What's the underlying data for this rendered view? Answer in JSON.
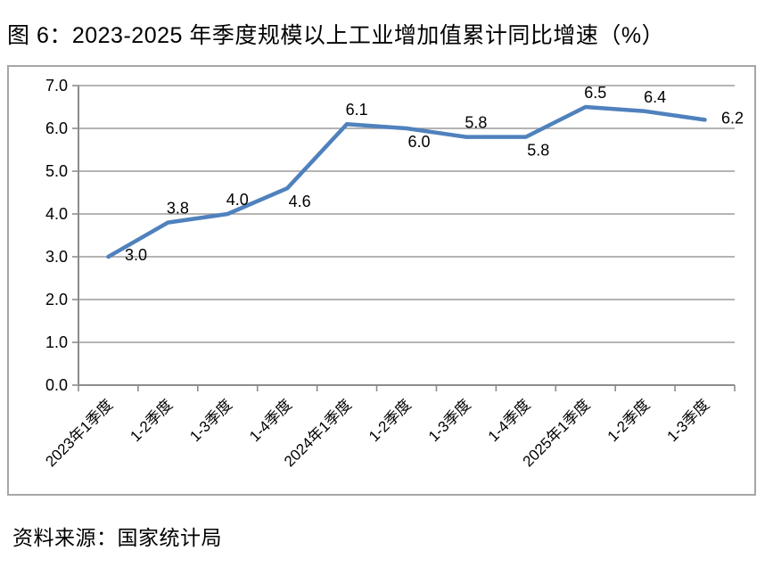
{
  "title": "图 6：2023-2025 年季度规模以上工业增加值累计同比增速（%）",
  "source": "资料来源：国家统计局",
  "chart_data": {
    "type": "line",
    "title": "图 6：2023-2025 年季度规模以上工业增加值累计同比增速（%）",
    "categories": [
      "2023年1季度",
      "1-2季度",
      "1-3季度",
      "1-4季度",
      "2024年1季度",
      "1-2季度",
      "1-3季度",
      "1-4季度",
      "2025年1季度",
      "1-2季度",
      "1-3季度"
    ],
    "values": [
      3.0,
      3.8,
      4.0,
      4.6,
      6.1,
      6.0,
      5.8,
      5.8,
      6.5,
      6.4,
      6.2
    ],
    "data_labels": [
      "3.0",
      "3.8",
      "4.0",
      "4.6",
      "6.1",
      "6.0",
      "5.8",
      "5.8",
      "6.5",
      "6.4",
      "6.2"
    ],
    "label_positions": [
      "right",
      "above",
      "above",
      "below",
      "above",
      "below",
      "above",
      "below",
      "above",
      "above",
      "right"
    ],
    "xlabel": "",
    "ylabel": "",
    "ylim": [
      0.0,
      7.0
    ],
    "ytick_step": 1.0,
    "ytick_labels": [
      "0.0",
      "1.0",
      "2.0",
      "3.0",
      "4.0",
      "5.0",
      "6.0",
      "7.0"
    ],
    "grid": true,
    "legend_position": "none",
    "line_color": "#4F81BD",
    "grid_color": "#9c9c9c",
    "axis_color": "#8c8c8c",
    "text_color": "#000000",
    "source_note": "资料来源：国家统计局"
  }
}
